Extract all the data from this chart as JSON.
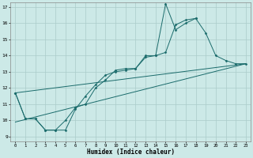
{
  "title": "",
  "xlabel": "Humidex (Indice chaleur)",
  "xlim": [
    -0.5,
    23.5
  ],
  "ylim": [
    8.7,
    17.3
  ],
  "yticks": [
    9,
    10,
    11,
    12,
    13,
    14,
    15,
    16,
    17
  ],
  "xticks": [
    0,
    1,
    2,
    3,
    4,
    5,
    6,
    7,
    8,
    9,
    10,
    11,
    12,
    13,
    14,
    15,
    16,
    17,
    18,
    19,
    20,
    21,
    22,
    23
  ],
  "bg_color": "#cce9e7",
  "grid_color": "#aaccca",
  "line_color": "#1a6b6b",
  "line1_x": [
    0,
    1,
    2,
    3,
    4,
    5,
    6,
    7,
    8,
    9,
    10,
    11,
    12,
    13,
    14,
    15,
    16,
    17,
    18,
    19,
    20,
    21,
    22,
    23
  ],
  "line1_y": [
    11.7,
    10.1,
    10.1,
    9.4,
    9.4,
    10.0,
    10.8,
    11.0,
    12.0,
    12.5,
    13.1,
    13.2,
    13.2,
    13.9,
    14.0,
    17.2,
    15.6,
    16.0,
    16.3,
    15.4,
    14.0,
    13.7,
    13.5,
    13.5
  ],
  "line2_x": [
    0,
    1,
    2,
    3,
    4,
    5,
    6,
    7,
    8,
    9,
    10,
    11,
    12,
    13,
    14,
    15,
    16,
    17,
    18
  ],
  "line2_y": [
    11.7,
    10.1,
    10.1,
    9.4,
    9.4,
    9.4,
    10.7,
    11.5,
    12.2,
    12.8,
    13.0,
    13.1,
    13.2,
    14.0,
    14.0,
    14.2,
    15.9,
    16.2,
    16.3
  ],
  "line3_x": [
    0,
    23
  ],
  "line3_y": [
    9.9,
    13.5
  ],
  "line4_x": [
    0,
    23
  ],
  "line4_y": [
    11.7,
    13.5
  ]
}
